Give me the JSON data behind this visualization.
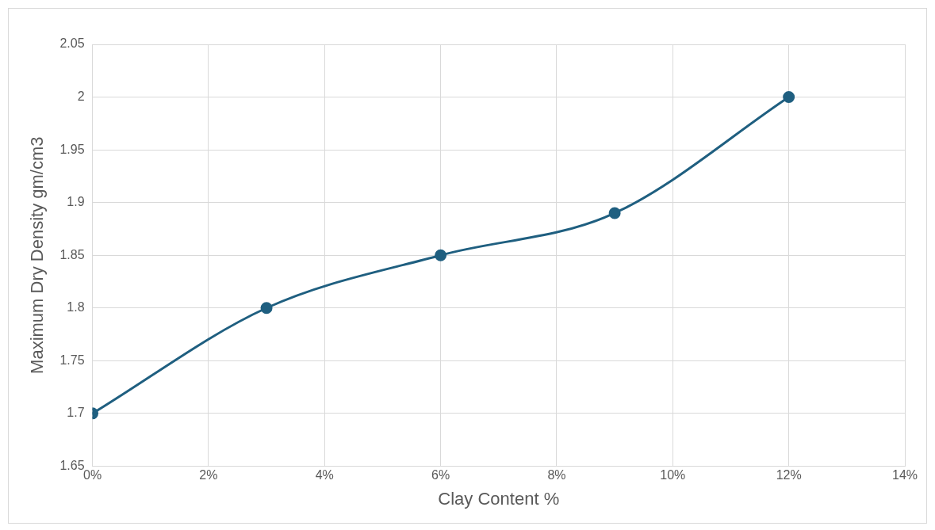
{
  "chart_data": {
    "type": "line",
    "xlabel": "Clay Content %",
    "ylabel": "Maximum Dry Density gm/cm3",
    "x": [
      0,
      3,
      6,
      9,
      12
    ],
    "series": [
      {
        "color": "#1f5f80",
        "values": [
          1.7,
          1.8,
          1.85,
          1.89,
          2.0
        ]
      }
    ],
    "xlim": [
      0,
      14
    ],
    "xticks": [
      {
        "value": 0,
        "label": "0%"
      },
      {
        "value": 2,
        "label": "2%"
      },
      {
        "value": 4,
        "label": "4%"
      },
      {
        "value": 6,
        "label": "6%"
      },
      {
        "value": 8,
        "label": "8%"
      },
      {
        "value": 10,
        "label": "10%"
      },
      {
        "value": 12,
        "label": "12%"
      },
      {
        "value": 14,
        "label": "14%"
      }
    ],
    "ylim": [
      1.65,
      2.05
    ],
    "yticks": [
      1.65,
      1.7,
      1.75,
      1.8,
      1.85,
      1.9,
      1.95,
      2,
      2.05
    ],
    "grid": true,
    "legend": false,
    "marker": "circle",
    "line_style": "solid"
  }
}
